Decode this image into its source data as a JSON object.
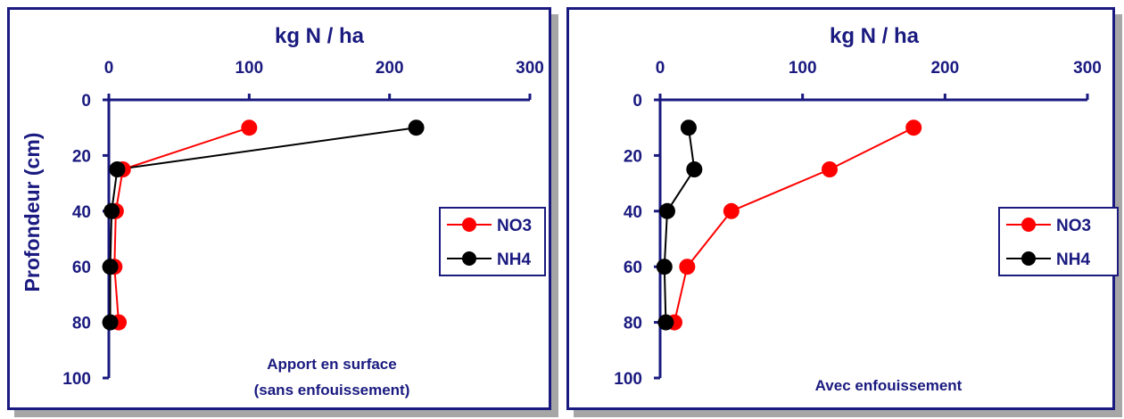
{
  "colors": {
    "axis": "#1a1a80",
    "no3": "#ff0000",
    "nh4": "#000000",
    "shadow": "#a6a6a6"
  },
  "chart_data": [
    {
      "type": "line",
      "title": "Apport en surface (sans enfouissement)",
      "annotation_lines": [
        "Apport en surface",
        "(sans enfouissement)"
      ],
      "xlabel": "kg N / ha",
      "ylabel": "Profondeur (cm)",
      "xlim": [
        0,
        300
      ],
      "ylim": [
        100,
        0
      ],
      "x_ticks": [
        "0",
        "100",
        "200",
        "300"
      ],
      "y_ticks": [
        "0",
        "20",
        "40",
        "60",
        "80",
        "100"
      ],
      "x_axis_position": "top",
      "y_axis_inverted": true,
      "legend_position": "right",
      "grid": false,
      "series": [
        {
          "name": "NO3",
          "color": "#ff0000",
          "points": [
            {
              "x": 100,
              "y": 10
            },
            {
              "x": 10,
              "y": 25
            },
            {
              "x": 5,
              "y": 40
            },
            {
              "x": 4,
              "y": 60
            },
            {
              "x": 7,
              "y": 80
            }
          ]
        },
        {
          "name": "NH4",
          "color": "#000000",
          "points": [
            {
              "x": 219,
              "y": 10
            },
            {
              "x": 6,
              "y": 25
            },
            {
              "x": 2,
              "y": 40
            },
            {
              "x": 1,
              "y": 60
            },
            {
              "x": 1,
              "y": 80
            }
          ]
        }
      ]
    },
    {
      "type": "line",
      "title": "Avec enfouissement",
      "annotation_lines": [
        "Avec enfouissement"
      ],
      "xlabel": "kg N / ha",
      "ylabel": "",
      "xlim": [
        0,
        300
      ],
      "ylim": [
        100,
        0
      ],
      "x_ticks": [
        "0",
        "100",
        "200",
        "300"
      ],
      "y_ticks": [
        "0",
        "20",
        "40",
        "60",
        "80",
        "100"
      ],
      "x_axis_position": "top",
      "y_axis_inverted": true,
      "legend_position": "right",
      "grid": false,
      "series": [
        {
          "name": "NO3",
          "color": "#ff0000",
          "points": [
            {
              "x": 178,
              "y": 10
            },
            {
              "x": 119,
              "y": 25
            },
            {
              "x": 50,
              "y": 40
            },
            {
              "x": 19,
              "y": 60
            },
            {
              "x": 10,
              "y": 80
            }
          ]
        },
        {
          "name": "NH4",
          "color": "#000000",
          "points": [
            {
              "x": 20,
              "y": 10
            },
            {
              "x": 24,
              "y": 25
            },
            {
              "x": 5,
              "y": 40
            },
            {
              "x": 3,
              "y": 60
            },
            {
              "x": 4,
              "y": 80
            }
          ]
        }
      ]
    }
  ]
}
